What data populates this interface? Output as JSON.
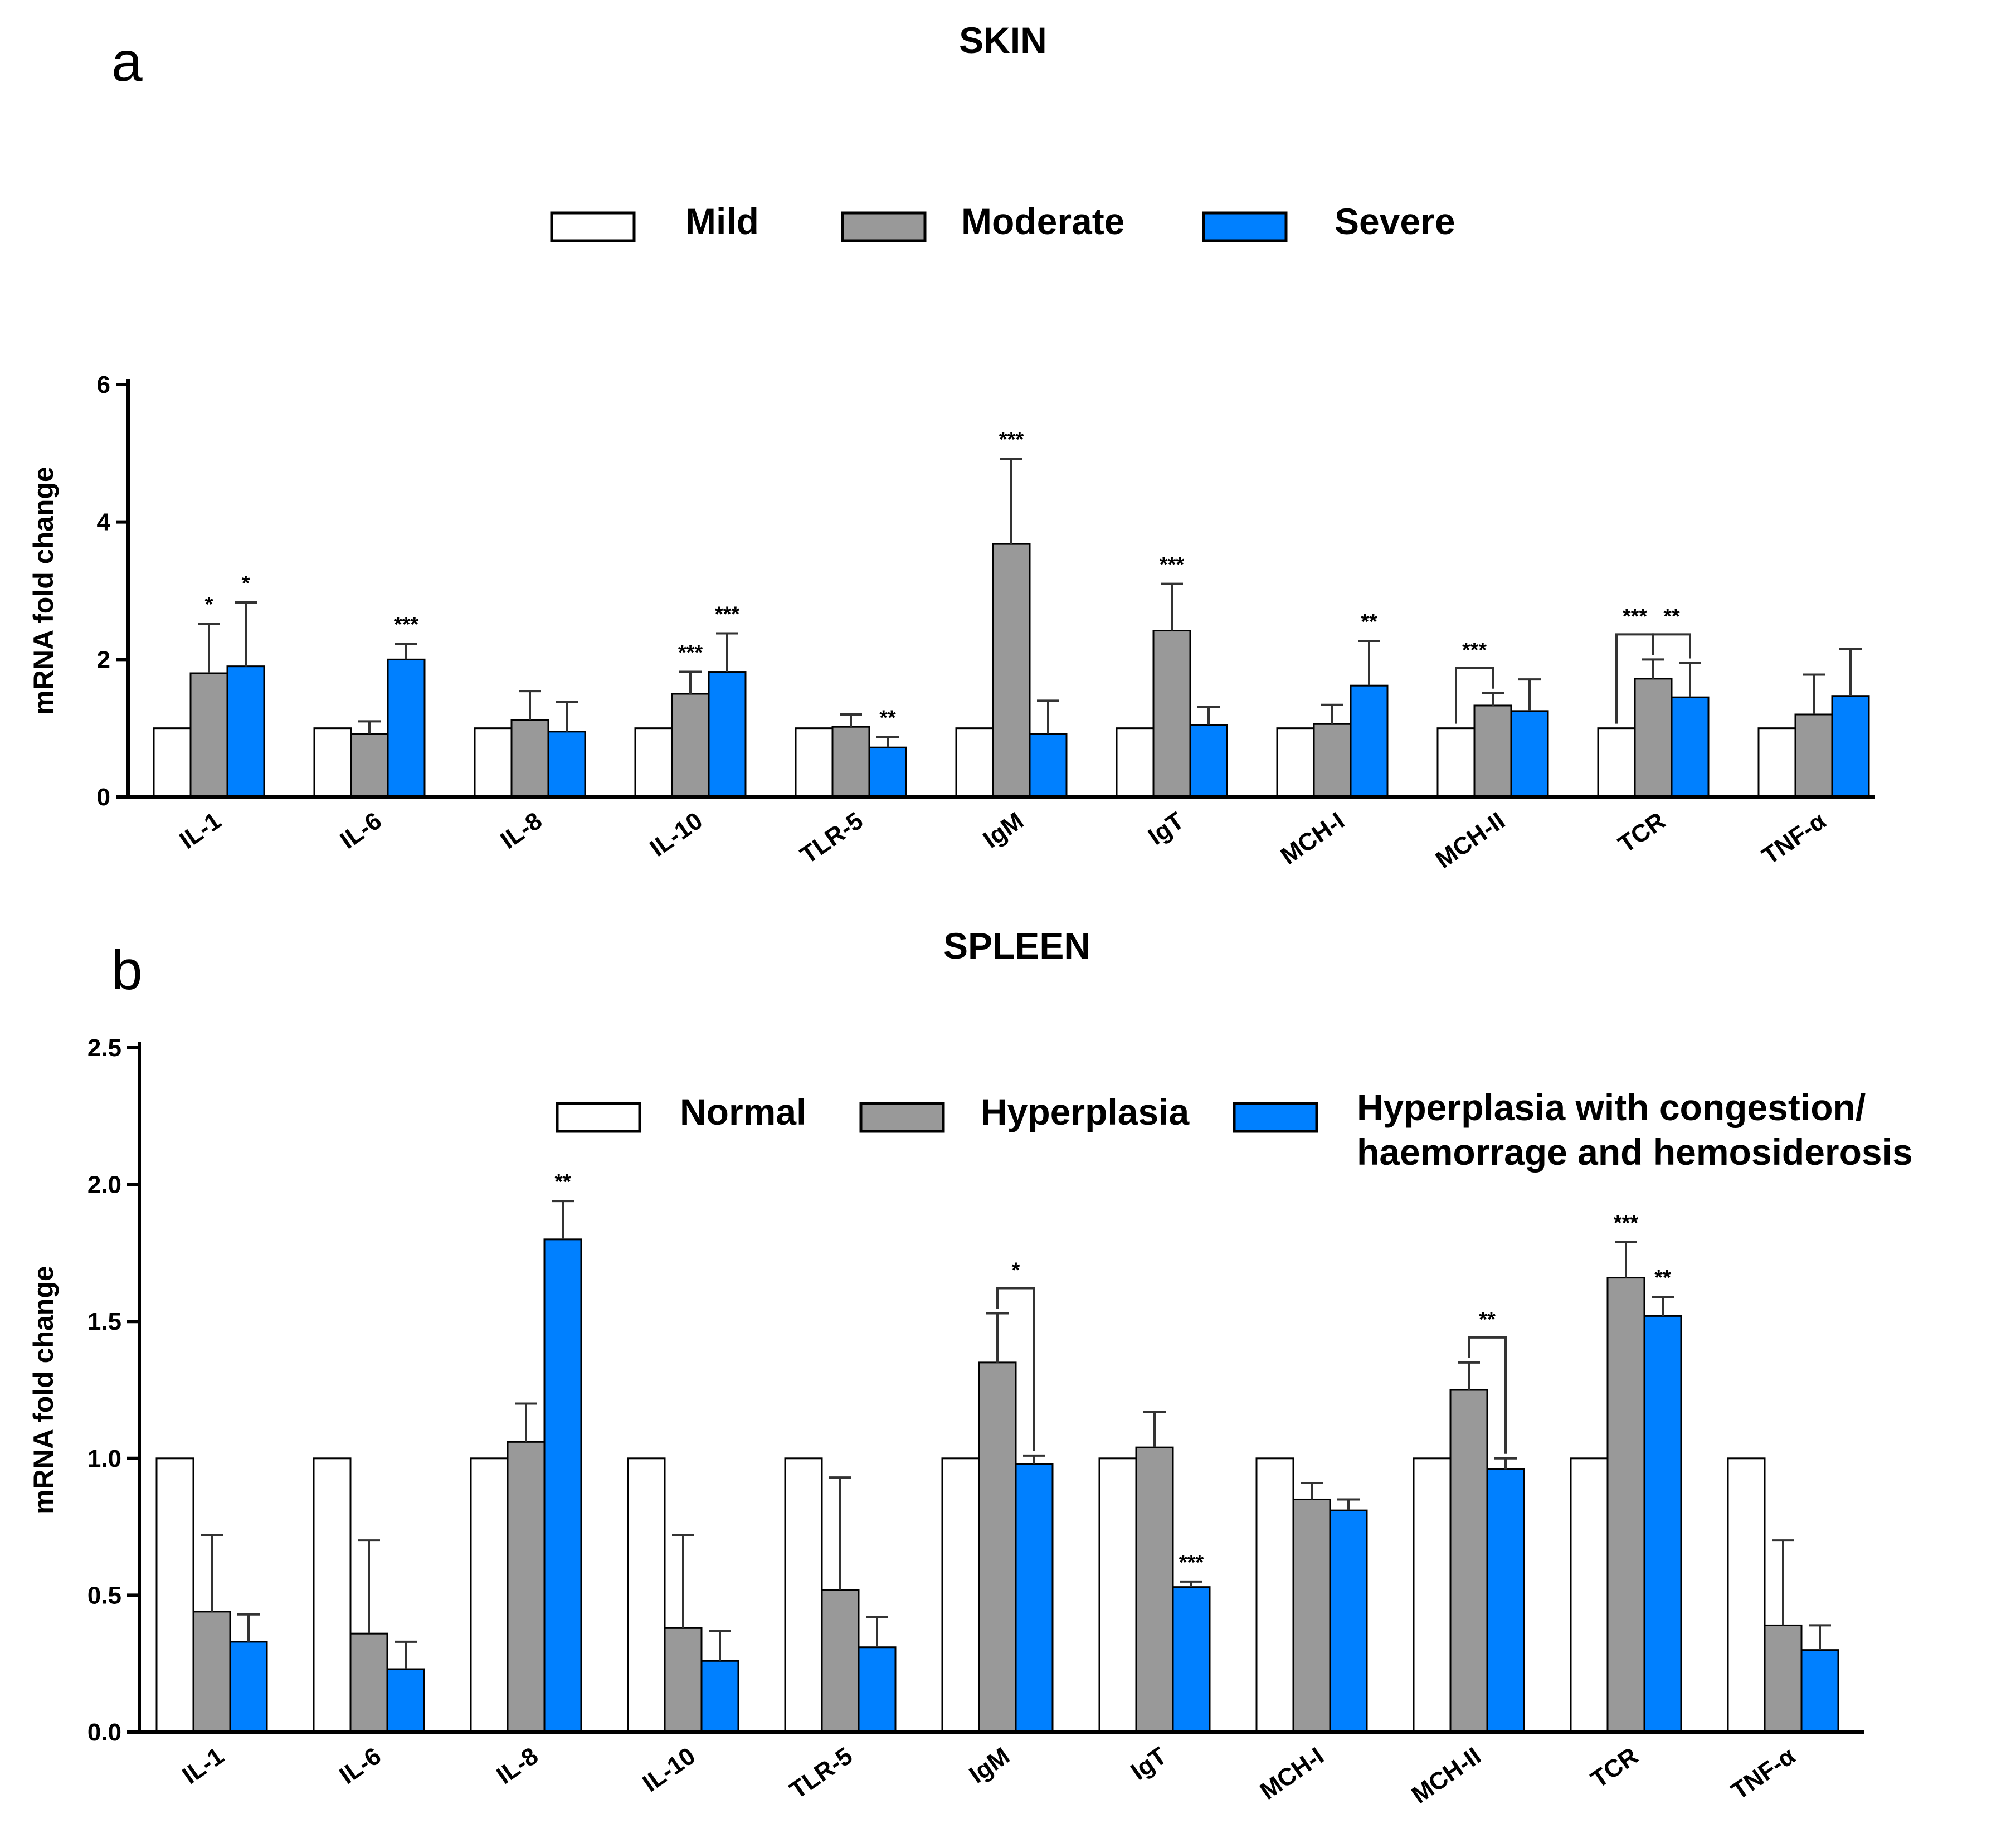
{
  "chart_data": [
    {
      "panel": "a",
      "type": "bar",
      "title": "SKIN",
      "xlabel": "",
      "ylabel": "mRNA fold change",
      "ylim": [
        0,
        6
      ],
      "yticks": [
        "0",
        "2",
        "4",
        "6"
      ],
      "yticks_values": [
        0,
        2,
        4,
        6
      ],
      "grid": false,
      "legend_position": "top-center",
      "categories": [
        "IL-1",
        "IL-6",
        "IL-8",
        "IL-10",
        "TLR-5",
        "IgM",
        "IgT",
        "MCH-I",
        "MCH-II",
        "TCR",
        "TNF-α"
      ],
      "series": [
        {
          "name": "Mild",
          "color": "#ffffff",
          "values": [
            1,
            1,
            1,
            1,
            1,
            1,
            1,
            1,
            1,
            1,
            1
          ],
          "errors": [
            0,
            0,
            0,
            0,
            0,
            0,
            0,
            0,
            0,
            0,
            0
          ]
        },
        {
          "name": "Moderate",
          "color": "#999999",
          "values": [
            1.8,
            0.92,
            1.12,
            1.5,
            1.02,
            3.68,
            2.42,
            1.06,
            1.33,
            1.72,
            1.2
          ],
          "errors": [
            0.72,
            0.18,
            0.42,
            0.32,
            0.18,
            1.24,
            0.68,
            0.28,
            0.18,
            0.28,
            0.58
          ]
        },
        {
          "name": "Severe",
          "color": "#0080ff",
          "values": [
            1.9,
            2.0,
            0.95,
            1.82,
            0.72,
            0.92,
            1.05,
            1.62,
            1.25,
            1.45,
            1.47
          ],
          "errors": [
            0.93,
            0.23,
            0.43,
            0.56,
            0.15,
            0.48,
            0.26,
            0.65,
            0.46,
            0.5,
            0.68
          ]
        }
      ],
      "annotations": [
        {
          "text": "*",
          "category": "IL-1",
          "series": 1
        },
        {
          "text": "*",
          "category": "IL-1",
          "series": 2
        },
        {
          "text": "***",
          "category": "IL-6",
          "series": 2
        },
        {
          "text": "***",
          "category": "IL-10",
          "series": 1
        },
        {
          "text": "***",
          "category": "IL-10",
          "series": 2
        },
        {
          "text": "**",
          "category": "TLR-5",
          "series": 2
        },
        {
          "text": "***",
          "category": "IgM",
          "series": 1
        },
        {
          "text": "***",
          "category": "IgT",
          "series": 1
        },
        {
          "text": "**",
          "category": "MCH-I",
          "series": 2
        },
        {
          "text": "***",
          "category": "MCH-II",
          "bracket": [
            0,
            1
          ]
        },
        {
          "text": "***",
          "category": "TCR",
          "bracket": [
            0,
            1
          ]
        },
        {
          "text": "**",
          "category": "TCR",
          "bracket": [
            1,
            2
          ]
        }
      ]
    },
    {
      "panel": "b",
      "type": "bar",
      "title": "SPLEEN",
      "xlabel": "",
      "ylabel": "mRNA fold change",
      "ylim": [
        0,
        2.5
      ],
      "yticks": [
        "0.0",
        "0.5",
        "1.0",
        "1.5",
        "2.0",
        "2.5"
      ],
      "yticks_values": [
        0,
        0.5,
        1.0,
        1.5,
        2.0,
        2.5
      ],
      "grid": false,
      "legend_position": "top-right",
      "categories": [
        "IL-1",
        "IL-6",
        "IL-8",
        "IL-10",
        "TLR-5",
        "IgM",
        "IgT",
        "MCH-I",
        "MCH-II",
        "TCR",
        "TNF-α"
      ],
      "series": [
        {
          "name": "Normal",
          "color": "#ffffff",
          "values": [
            1,
            1,
            1,
            1,
            1,
            1,
            1,
            1,
            1,
            1,
            1
          ],
          "errors": [
            0,
            0,
            0,
            0,
            0,
            0,
            0,
            0,
            0,
            0,
            0
          ]
        },
        {
          "name": "Hyperplasia",
          "color": "#999999",
          "values": [
            0.44,
            0.36,
            1.06,
            0.38,
            0.52,
            1.35,
            1.04,
            0.85,
            1.25,
            1.66,
            0.39
          ],
          "errors": [
            0.28,
            0.34,
            0.14,
            0.34,
            0.41,
            0.18,
            0.13,
            0.06,
            0.1,
            0.13,
            0.31
          ]
        },
        {
          "name": "Hyperplasia with congestion/ haemorrage and hemosiderosis",
          "color": "#0080ff",
          "legend_lines": [
            "Hyperplasia with congestion/",
            "haemorrage and hemosiderosis"
          ],
          "values": [
            0.33,
            0.23,
            1.8,
            0.26,
            0.31,
            0.98,
            0.53,
            0.81,
            0.96,
            1.52,
            0.3
          ],
          "errors": [
            0.1,
            0.1,
            0.14,
            0.11,
            0.11,
            0.03,
            0.02,
            0.04,
            0.04,
            0.07,
            0.09
          ]
        }
      ],
      "annotations": [
        {
          "text": "**",
          "category": "IL-8",
          "series": 2
        },
        {
          "text": "*",
          "category": "IgM",
          "bracket": [
            1,
            2
          ]
        },
        {
          "text": "***",
          "category": "IgT",
          "series": 2
        },
        {
          "text": "**",
          "category": "MCH-II",
          "bracket": [
            1,
            2
          ]
        },
        {
          "text": "***",
          "category": "TCR",
          "series": 1
        },
        {
          "text": "**",
          "category": "TCR",
          "series": 2
        }
      ]
    }
  ]
}
